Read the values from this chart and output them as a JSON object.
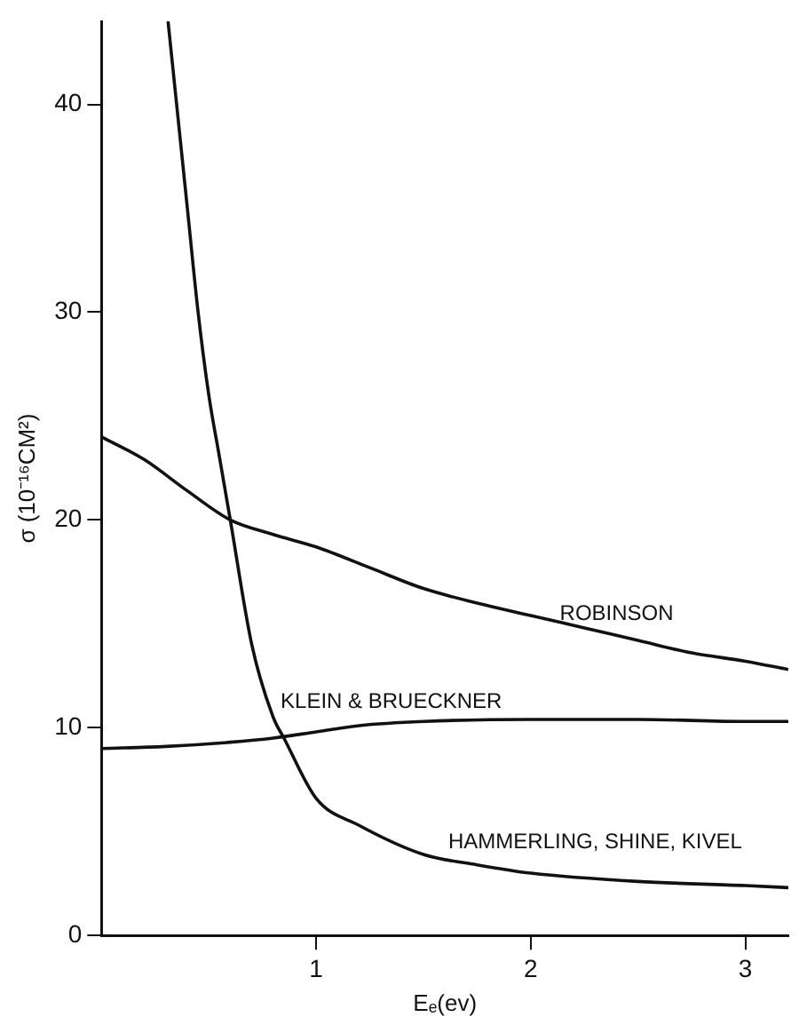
{
  "chart_data": {
    "type": "line",
    "xlabel": "Eₑ(ev)",
    "ylabel": "σ (10⁻¹⁶CM²)",
    "xlim": [
      0,
      3.2
    ],
    "ylim": [
      0,
      44
    ],
    "xticks": [
      1,
      2,
      3
    ],
    "yticks": [
      0,
      10,
      20,
      30,
      40
    ],
    "grid": false,
    "legend": false,
    "marker": "none",
    "line_style": "solid",
    "series": [
      {
        "name": "ROBINSON",
        "color": "#111111",
        "x": [
          0,
          0.2,
          0.4,
          0.6,
          0.8,
          1,
          1.25,
          1.5,
          1.75,
          2,
          2.25,
          2.5,
          2.75,
          3,
          3.2
        ],
        "values": [
          24,
          22.9,
          21.4,
          20,
          19.3,
          18.7,
          17.7,
          16.7,
          16,
          15.4,
          14.8,
          14.2,
          13.6,
          13.2,
          12.8
        ]
      },
      {
        "name": "KLEIN & BRUECKNER",
        "color": "#111111",
        "x": [
          0,
          0.3,
          0.6,
          0.8,
          1,
          1.2,
          1.5,
          2,
          2.5,
          3,
          3.2
        ],
        "values": [
          9,
          9.1,
          9.3,
          9.5,
          9.8,
          10.1,
          10.3,
          10.4,
          10.4,
          10.3,
          10.3
        ]
      },
      {
        "name": "HAMMERLING, SHINE, KIVEL",
        "color": "#111111",
        "x": [
          0.31,
          0.35,
          0.4,
          0.45,
          0.5,
          0.55,
          0.6,
          0.7,
          0.8,
          0.85,
          1,
          1.2,
          1.5,
          1.75,
          2,
          2.5,
          3,
          3.2
        ],
        "values": [
          44,
          40,
          35,
          30,
          26,
          23,
          20,
          14,
          10.5,
          9.5,
          6.6,
          5.3,
          3.9,
          3.4,
          3,
          2.6,
          2.4,
          2.3
        ]
      }
    ]
  }
}
